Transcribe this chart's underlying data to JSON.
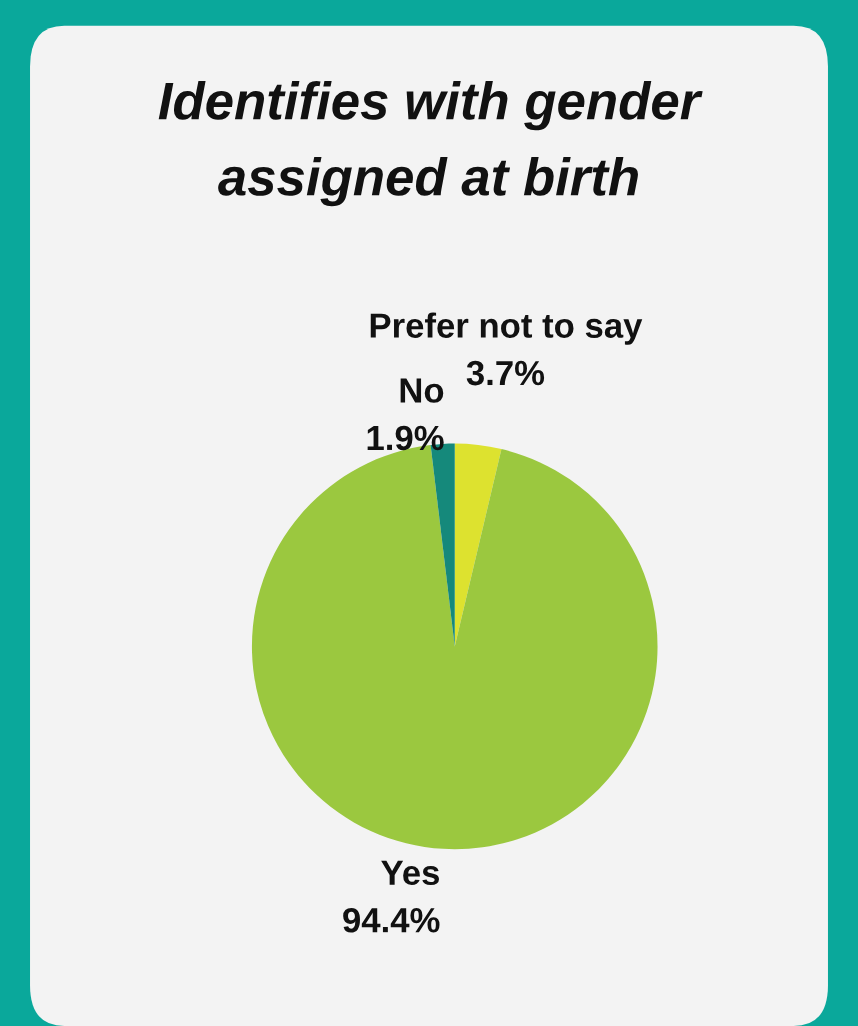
{
  "chart_data": {
    "type": "pie",
    "title": "Identifies with gender\nassigned at birth",
    "categories": [
      "Prefer not to say",
      "Yes",
      "No"
    ],
    "values": [
      3.7,
      94.4,
      1.9
    ],
    "colors": [
      "#dde22f",
      "#9bc83f",
      "#15897b"
    ],
    "value_labels": [
      "3.7%",
      "94.4%",
      "1.9%"
    ]
  }
}
